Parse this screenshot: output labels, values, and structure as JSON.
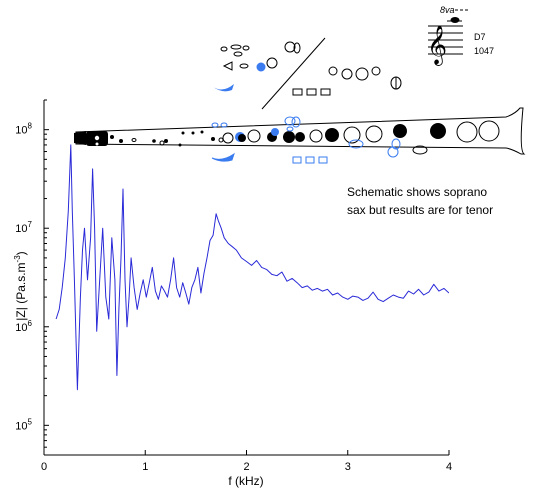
{
  "chart_data": {
    "type": "line",
    "xlabel": "f (kHz)",
    "ylabel_main": "|Z| (Pa.s.m",
    "ylabel_sup": "-3",
    "ylabel_tail": ")",
    "xlim": [
      0,
      4
    ],
    "ylim": [
      50000,
      200000000
    ],
    "yscale": "log",
    "x_ticks": [
      0,
      1,
      2,
      3,
      4
    ],
    "x_tick_labels": [
      "0",
      "1",
      "2",
      "3",
      "4"
    ],
    "y_ticks": [
      100000,
      1000000,
      10000000,
      100000000
    ],
    "y_tick_base": [
      "10",
      "10",
      "10",
      "10"
    ],
    "y_tick_exp": [
      "5",
      "6",
      "7",
      "8"
    ],
    "annotation": [
      "Schematic shows soprano",
      "sax but results are for tenor"
    ],
    "fingering_note": "D7",
    "fingering_freq": "1047",
    "octave_mark": "8va",
    "line_color": "#2a2ad8",
    "key_highlight_color": "#3a7cf0",
    "series": [
      {
        "x": [
          0.12,
          0.15,
          0.18,
          0.21,
          0.24,
          0.265,
          0.28,
          0.3,
          0.33,
          0.36,
          0.38,
          0.4,
          0.43,
          0.46,
          0.48,
          0.5,
          0.52,
          0.55,
          0.58,
          0.61,
          0.64,
          0.67,
          0.7,
          0.72,
          0.74,
          0.76,
          0.78,
          0.8,
          0.82,
          0.84,
          0.86,
          0.89,
          0.92,
          0.95,
          0.98,
          1.01,
          1.04,
          1.07,
          1.1,
          1.13,
          1.16,
          1.19,
          1.22,
          1.25,
          1.28,
          1.31,
          1.34,
          1.37,
          1.4,
          1.43,
          1.46,
          1.49,
          1.52,
          1.55,
          1.58,
          1.61,
          1.64,
          1.67,
          1.7,
          1.72,
          1.75,
          1.78,
          1.82,
          1.86,
          1.9,
          1.95,
          2.0,
          2.05,
          2.1,
          2.15,
          2.2,
          2.25,
          2.3,
          2.35,
          2.4,
          2.45,
          2.5,
          2.55,
          2.6,
          2.65,
          2.7,
          2.75,
          2.8,
          2.85,
          2.9,
          2.95,
          3.0,
          3.05,
          3.1,
          3.15,
          3.2,
          3.25,
          3.3,
          3.35,
          3.4,
          3.45,
          3.5,
          3.55,
          3.6,
          3.65,
          3.7,
          3.75,
          3.8,
          3.85,
          3.9,
          3.95,
          4.0
        ],
        "y": [
          1200000,
          1500000,
          2500000,
          5000000,
          15000000,
          70000000,
          15000000,
          3000000,
          230000,
          2000000,
          6000000,
          10000000,
          3000000,
          8000000,
          40000000,
          10000000,
          900000,
          3000000,
          10000000,
          2000000,
          1200000,
          8000000,
          3000000,
          320000,
          1500000,
          5000000,
          25000000,
          3000000,
          1000000,
          2000000,
          5000000,
          2500000,
          1500000,
          2200000,
          3000000,
          2000000,
          2800000,
          4000000,
          2300000,
          1900000,
          2600000,
          2300000,
          2000000,
          3000000,
          5000000,
          2500000,
          2000000,
          2800000,
          2200000,
          1700000,
          2500000,
          3000000,
          4000000,
          2200000,
          3500000,
          5000000,
          7500000,
          8500000,
          14000000,
          12000000,
          10000000,
          8000000,
          7000000,
          6500000,
          6000000,
          5000000,
          4600000,
          4200000,
          4700000,
          4000000,
          3800000,
          3400000,
          3300000,
          3600000,
          2900000,
          3100000,
          2800000,
          2500000,
          2600000,
          2350000,
          2450000,
          2300000,
          2400000,
          2100000,
          2200000,
          2000000,
          1900000,
          2050000,
          2000000,
          1850000,
          1950000,
          2250000,
          1900000,
          1800000,
          1950000,
          2100000,
          2000000,
          1950000,
          2300000,
          2150000,
          2400000,
          2100000,
          2250000,
          2700000,
          2300000,
          2450000,
          2200000
        ]
      }
    ]
  }
}
